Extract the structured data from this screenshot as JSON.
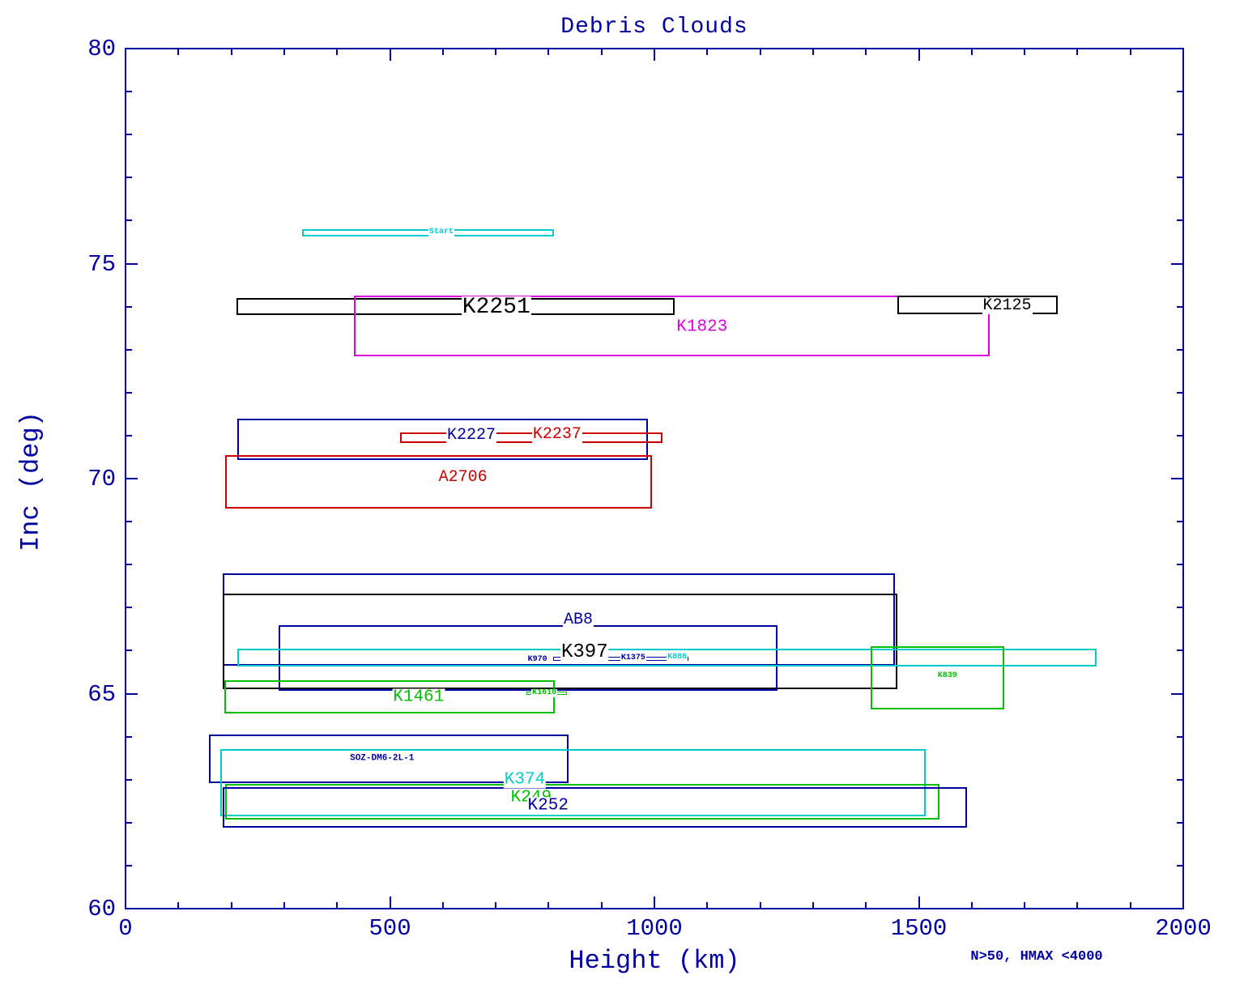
{
  "chart_data": {
    "type": "box",
    "title": "Debris Clouds",
    "xlabel": "Height (km)",
    "ylabel": "Inc (deg)",
    "annotation": "N>50, HMAX <4000",
    "xlim": [
      0,
      2000
    ],
    "ylim": [
      60,
      80
    ],
    "x_major_ticks": [
      0,
      500,
      1000,
      1500,
      2000
    ],
    "x_minor_step": 100,
    "y_major_ticks": [
      60,
      65,
      70,
      75,
      80
    ],
    "y_minor_step": 1,
    "grid": false,
    "legend": "none",
    "axis_color": "#0000a0",
    "colors": {
      "navy": "#0000a0",
      "black": "#000000",
      "magenta": "#dd00dd",
      "red": "#cc0000",
      "cyan": "#00cccc",
      "green": "#00c000"
    },
    "boxes": [
      {
        "label": "Start",
        "color": "cyan",
        "height_km": [
          334,
          810
        ],
        "inc_deg": [
          75.63,
          75.8
        ],
        "label_at": [
          597,
          75.72
        ],
        "label_size": 10
      },
      {
        "label": "K2251",
        "color": "black",
        "height_km": [
          210,
          1038
        ],
        "inc_deg": [
          73.8,
          74.2
        ],
        "label_at": [
          701,
          73.98
        ],
        "label_size": 28
      },
      {
        "label": "K1823",
        "color": "magenta",
        "height_km": [
          432,
          1634
        ],
        "inc_deg": [
          72.84,
          74.26
        ],
        "label_at": [
          1090,
          73.52
        ],
        "label_size": 21
      },
      {
        "label": "K2125",
        "color": "black",
        "height_km": [
          1459,
          1763
        ],
        "inc_deg": [
          73.82,
          74.26
        ],
        "label_at": [
          1667,
          74.02
        ],
        "label_size": 20
      },
      {
        "label": "K2227",
        "color": "navy",
        "height_km": [
          211,
          988
        ],
        "inc_deg": [
          70.43,
          71.39
        ],
        "label_at": [
          654,
          71.0
        ],
        "label_size": 20
      },
      {
        "label": "K2237",
        "color": "red",
        "height_km": [
          519,
          1015
        ],
        "inc_deg": [
          70.83,
          71.07
        ],
        "label_at": [
          816,
          71.02
        ],
        "label_size": 20
      },
      {
        "label": "A2706",
        "color": "red",
        "height_km": [
          188,
          995
        ],
        "inc_deg": [
          69.3,
          70.55
        ],
        "label_at": [
          638,
          70.02
        ],
        "label_size": 20
      },
      {
        "label": "AB8",
        "color": "navy",
        "height_km": [
          184,
          1455
        ],
        "inc_deg": [
          65.65,
          67.8
        ],
        "label_at": [
          856,
          66.7
        ],
        "label_size": 20
      },
      {
        "label": "K397",
        "color": "black",
        "height_km": [
          184,
          1459
        ],
        "inc_deg": [
          65.1,
          67.33
        ],
        "label_at": [
          868,
          65.96
        ],
        "label_size": 24
      },
      {
        "label": "K970",
        "color": "navy",
        "height_km": [
          289,
          1233
        ],
        "inc_deg": [
          65.07,
          66.59
        ],
        "label_at": [
          779,
          65.79
        ],
        "label_size": 10
      },
      {
        "label": "K1375",
        "color": "navy",
        "height_km": [
          808,
          1064
        ],
        "inc_deg": [
          65.77,
          65.86
        ],
        "label_at": [
          960,
          65.82
        ],
        "label_size": 10
      },
      {
        "label": "K886",
        "color": "cyan",
        "height_km": [
          211,
          1836
        ],
        "inc_deg": [
          65.63,
          66.04
        ],
        "label_at": [
          1043,
          65.83
        ],
        "label_size": 10
      },
      {
        "label": "K1461",
        "color": "green",
        "height_km": [
          187,
          811
        ],
        "inc_deg": [
          64.54,
          65.31
        ],
        "label_at": [
          554,
          64.91
        ],
        "label_size": 21
      },
      {
        "label": "K1610",
        "color": "green",
        "height_km": [
          758,
          834
        ],
        "inc_deg": [
          64.97,
          65.05
        ],
        "label_at": [
          792,
          65.01
        ],
        "label_size": 10
      },
      {
        "label": "K839",
        "color": "green",
        "height_km": [
          1409,
          1661
        ],
        "inc_deg": [
          64.63,
          66.1
        ],
        "label_at": [
          1554,
          65.4
        ],
        "label_size": 10
      },
      {
        "label": "SOZ-DM6-2L-1",
        "color": "navy",
        "height_km": [
          158,
          838
        ],
        "inc_deg": [
          62.92,
          64.05
        ],
        "label_at": [
          485,
          63.48
        ],
        "label_size": 11
      },
      {
        "label": "K374",
        "color": "cyan",
        "height_km": [
          179,
          1513
        ],
        "inc_deg": [
          62.15,
          63.71
        ],
        "label_at": [
          755,
          62.99
        ],
        "label_size": 21
      },
      {
        "label": "K249",
        "color": "green",
        "height_km": [
          188,
          1539
        ],
        "inc_deg": [
          62.07,
          62.9
        ],
        "label_at": [
          767,
          62.58
        ],
        "label_size": 21
      },
      {
        "label": "K252",
        "color": "navy",
        "height_km": [
          184,
          1591
        ],
        "inc_deg": [
          61.88,
          62.82
        ],
        "label_at": [
          799,
          62.39
        ],
        "label_size": 21
      }
    ]
  }
}
